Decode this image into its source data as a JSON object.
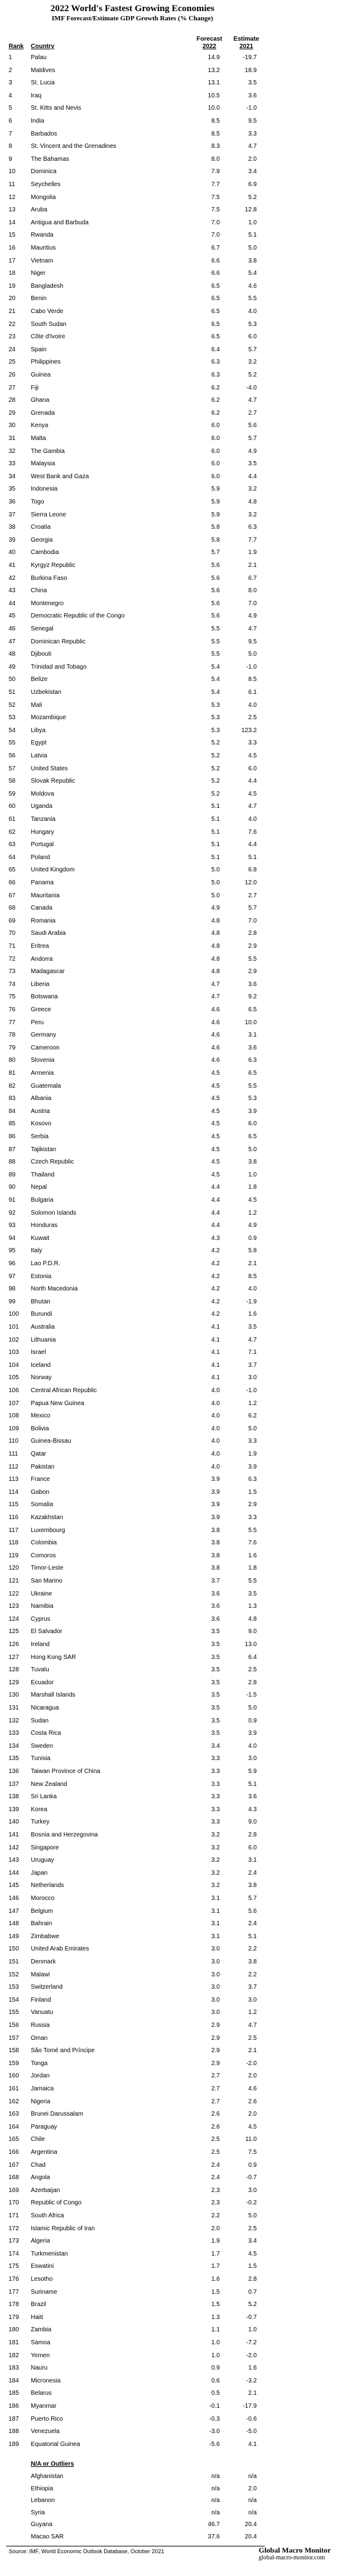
{
  "header": {
    "title": "2022 World's Fastest Growing Economies",
    "subtitle": "IMF Forecast/Estimate GDP Growth Rates (% Change)"
  },
  "table": {
    "columns": [
      "Rank",
      "Country",
      "Forecast",
      "Estimate"
    ],
    "years": [
      "2022",
      "2021"
    ],
    "rows": [
      [
        "1",
        "Palau",
        "14.9",
        "-19.7"
      ],
      [
        "2",
        "Maldives",
        "13.2",
        "18.9"
      ],
      [
        "3",
        "St. Lucia",
        "13.1",
        "3.5"
      ],
      [
        "4",
        "Iraq",
        "10.5",
        "3.6"
      ],
      [
        "5",
        "St. Kitts and Nevis",
        "10.0",
        "-1.0"
      ],
      [
        "6",
        "India",
        "8.5",
        "9.5"
      ],
      [
        "7",
        "Barbados",
        "8.5",
        "3.3"
      ],
      [
        "8",
        "St. Vincent and the Grenadines",
        "8.3",
        "4.7"
      ],
      [
        "9",
        "The Bahamas",
        "8.0",
        "2.0"
      ],
      [
        "10",
        "Dominica",
        "7.9",
        "3.4"
      ],
      [
        "11",
        "Seychelles",
        "7.7",
        "6.9"
      ],
      [
        "12",
        "Mongolia",
        "7.5",
        "5.2"
      ],
      [
        "13",
        "Aruba",
        "7.5",
        "12.8"
      ],
      [
        "14",
        "Antigua and Barbuda",
        "7.0",
        "1.0"
      ],
      [
        "15",
        "Rwanda",
        "7.0",
        "5.1"
      ],
      [
        "16",
        "Mauritius",
        "6.7",
        "5.0"
      ],
      [
        "17",
        "Vietnam",
        "6.6",
        "3.8"
      ],
      [
        "18",
        "Niger",
        "6.6",
        "5.4"
      ],
      [
        "19",
        "Bangladesh",
        "6.5",
        "4.6"
      ],
      [
        "20",
        "Benin",
        "6.5",
        "5.5"
      ],
      [
        "21",
        "Cabo Verde",
        "6.5",
        "4.0"
      ],
      [
        "22",
        "South Sudan",
        "6.5",
        "5.3"
      ],
      [
        "23",
        "Côte d'Ivoire",
        "6.5",
        "6.0"
      ],
      [
        "24",
        "Spain",
        "6.4",
        "5.7"
      ],
      [
        "25",
        "Philippines",
        "6.3",
        "3.2"
      ],
      [
        "26",
        "Guinea",
        "6.3",
        "5.2"
      ],
      [
        "27",
        "Fiji",
        "6.2",
        "-4.0"
      ],
      [
        "28",
        "Ghana",
        "6.2",
        "4.7"
      ],
      [
        "29",
        "Grenada",
        "6.2",
        "2.7"
      ],
      [
        "30",
        "Kenya",
        "6.0",
        "5.6"
      ],
      [
        "31",
        "Malta",
        "6.0",
        "5.7"
      ],
      [
        "32",
        "The Gambia",
        "6.0",
        "4.9"
      ],
      [
        "33",
        "Malaysia",
        "6.0",
        "3.5"
      ],
      [
        "34",
        "West Bank and Gaza",
        "6.0",
        "4.4"
      ],
      [
        "35",
        "Indonesia",
        "5.9",
        "3.2"
      ],
      [
        "36",
        "Togo",
        "5.9",
        "4.8"
      ],
      [
        "37",
        "Sierra Leone",
        "5.9",
        "3.2"
      ],
      [
        "38",
        "Croatia",
        "5.8",
        "6.3"
      ],
      [
        "39",
        "Georgia",
        "5.8",
        "7.7"
      ],
      [
        "40",
        "Cambodia",
        "5.7",
        "1.9"
      ],
      [
        "41",
        "Kyrgyz Republic",
        "5.6",
        "2.1"
      ],
      [
        "42",
        "Burkina Faso",
        "5.6",
        "6.7"
      ],
      [
        "43",
        "China",
        "5.6",
        "8.0"
      ],
      [
        "44",
        "Montenegro",
        "5.6",
        "7.0"
      ],
      [
        "45",
        "Democratic Republic of the Congo",
        "5.6",
        "4.9"
      ],
      [
        "46",
        "Senegal",
        "5.5",
        "4.7"
      ],
      [
        "47",
        "Dominican Republic",
        "5.5",
        "9.5"
      ],
      [
        "48",
        "Djibouti",
        "5.5",
        "5.0"
      ],
      [
        "49",
        "Trinidad and Tobago",
        "5.4",
        "-1.0"
      ],
      [
        "50",
        "Belize",
        "5.4",
        "8.5"
      ],
      [
        "51",
        "Uzbekistan",
        "5.4",
        "6.1"
      ],
      [
        "52",
        "Mali",
        "5.3",
        "4.0"
      ],
      [
        "53",
        "Mozambique",
        "5.3",
        "2.5"
      ],
      [
        "54",
        "Libya",
        "5.3",
        "123.2"
      ],
      [
        "55",
        "Egypt",
        "5.2",
        "3.3"
      ],
      [
        "56",
        "Latvia",
        "5.2",
        "4.5"
      ],
      [
        "57",
        "United States",
        "5.2",
        "6.0"
      ],
      [
        "58",
        "Slovak Republic",
        "5.2",
        "4.4"
      ],
      [
        "59",
        "Moldova",
        "5.2",
        "4.5"
      ],
      [
        "60",
        "Uganda",
        "5.1",
        "4.7"
      ],
      [
        "61",
        "Tanzania",
        "5.1",
        "4.0"
      ],
      [
        "62",
        "Hungary",
        "5.1",
        "7.6"
      ],
      [
        "63",
        "Portugal",
        "5.1",
        "4.4"
      ],
      [
        "64",
        "Poland",
        "5.1",
        "5.1"
      ],
      [
        "65",
        "United Kingdom",
        "5.0",
        "6.8"
      ],
      [
        "66",
        "Panama",
        "5.0",
        "12.0"
      ],
      [
        "67",
        "Mauritania",
        "5.0",
        "2.7"
      ],
      [
        "68",
        "Canada",
        "4.9",
        "5.7"
      ],
      [
        "69",
        "Romania",
        "4.8",
        "7.0"
      ],
      [
        "70",
        "Saudi Arabia",
        "4.8",
        "2.8"
      ],
      [
        "71",
        "Eritrea",
        "4.8",
        "2.9"
      ],
      [
        "72",
        "Andorra",
        "4.8",
        "5.5"
      ],
      [
        "73",
        "Madagascar",
        "4.8",
        "2.9"
      ],
      [
        "74",
        "Liberia",
        "4.7",
        "3.6"
      ],
      [
        "75",
        "Botswana",
        "4.7",
        "9.2"
      ],
      [
        "76",
        "Greece",
        "4.6",
        "6.5"
      ],
      [
        "77",
        "Peru",
        "4.6",
        "10.0"
      ],
      [
        "78",
        "Germany",
        "4.6",
        "3.1"
      ],
      [
        "79",
        "Cameroon",
        "4.6",
        "3.6"
      ],
      [
        "80",
        "Slovenia",
        "4.6",
        "6.3"
      ],
      [
        "81",
        "Armenia",
        "4.5",
        "6.5"
      ],
      [
        "82",
        "Guatemala",
        "4.5",
        "5.5"
      ],
      [
        "83",
        "Albania",
        "4.5",
        "5.3"
      ],
      [
        "84",
        "Austria",
        "4.5",
        "3.9"
      ],
      [
        "85",
        "Kosovo",
        "4.5",
        "6.0"
      ],
      [
        "86",
        "Serbia",
        "4.5",
        "6.5"
      ],
      [
        "87",
        "Tajikistan",
        "4.5",
        "5.0"
      ],
      [
        "88",
        "Czech Republic",
        "4.5",
        "3.8"
      ],
      [
        "89",
        "Thailand",
        "4.5",
        "1.0"
      ],
      [
        "90",
        "Nepal",
        "4.4",
        "1.8"
      ],
      [
        "91",
        "Bulgaria",
        "4.4",
        "4.5"
      ],
      [
        "92",
        "Solomon Islands",
        "4.4",
        "1.2"
      ],
      [
        "93",
        "Honduras",
        "4.4",
        "4.9"
      ],
      [
        "94",
        "Kuwait",
        "4.3",
        "0.9"
      ],
      [
        "95",
        "Italy",
        "4.2",
        "5.8"
      ],
      [
        "96",
        "Lao P.D.R.",
        "4.2",
        "2.1"
      ],
      [
        "97",
        "Estonia",
        "4.2",
        "8.5"
      ],
      [
        "98",
        "North Macedonia",
        "4.2",
        "4.0"
      ],
      [
        "99",
        "Bhutan",
        "4.2",
        "-1.9"
      ],
      [
        "100",
        "Burundi",
        "4.2",
        "1.6"
      ],
      [
        "101",
        "Australia",
        "4.1",
        "3.5"
      ],
      [
        "102",
        "Lithuania",
        "4.1",
        "4.7"
      ],
      [
        "103",
        "Israel",
        "4.1",
        "7.1"
      ],
      [
        "104",
        "Iceland",
        "4.1",
        "3.7"
      ],
      [
        "105",
        "Norway",
        "4.1",
        "3.0"
      ],
      [
        "106",
        "Central African Republic",
        "4.0",
        "-1.0"
      ],
      [
        "107",
        "Papua New Guinea",
        "4.0",
        "1.2"
      ],
      [
        "108",
        "Mexico",
        "4.0",
        "6.2"
      ],
      [
        "109",
        "Bolivia",
        "4.0",
        "5.0"
      ],
      [
        "110",
        "Guinea-Bissau",
        "4.0",
        "3.3"
      ],
      [
        "111",
        "Qatar",
        "4.0",
        "1.9"
      ],
      [
        "112",
        "Pakistan",
        "4.0",
        "3.9"
      ],
      [
        "113",
        "France",
        "3.9",
        "6.3"
      ],
      [
        "114",
        "Gabon",
        "3.9",
        "1.5"
      ],
      [
        "115",
        "Somalia",
        "3.9",
        "2.9"
      ],
      [
        "116",
        "Kazakhstan",
        "3.9",
        "3.3"
      ],
      [
        "117",
        "Luxembourg",
        "3.8",
        "5.5"
      ],
      [
        "118",
        "Colombia",
        "3.8",
        "7.6"
      ],
      [
        "119",
        "Comoros",
        "3.8",
        "1.6"
      ],
      [
        "120",
        "Timor-Leste",
        "3.8",
        "1.8"
      ],
      [
        "121",
        "San Marino",
        "3.7",
        "5.5"
      ],
      [
        "122",
        "Ukraine",
        "3.6",
        "3.5"
      ],
      [
        "123",
        "Namibia",
        "3.6",
        "1.3"
      ],
      [
        "124",
        "Cyprus",
        "3.6",
        "4.8"
      ],
      [
        "125",
        "El Salvador",
        "3.5",
        "9.0"
      ],
      [
        "126",
        "Ireland",
        "3.5",
        "13.0"
      ],
      [
        "127",
        "Hong Kong SAR",
        "3.5",
        "6.4"
      ],
      [
        "128",
        "Tuvalu",
        "3.5",
        "2.5"
      ],
      [
        "129",
        "Ecuador",
        "3.5",
        "2.8"
      ],
      [
        "130",
        "Marshall Islands",
        "3.5",
        "-1.5"
      ],
      [
        "131",
        "Nicaragua",
        "3.5",
        "5.0"
      ],
      [
        "132",
        "Sudan",
        "3.5",
        "0.9"
      ],
      [
        "133",
        "Costa Rica",
        "3.5",
        "3.9"
      ],
      [
        "134",
        "Sweden",
        "3.4",
        "4.0"
      ],
      [
        "135",
        "Tunisia",
        "3.3",
        "3.0"
      ],
      [
        "136",
        "Taiwan Province of China",
        "3.3",
        "5.9"
      ],
      [
        "137",
        "New Zealand",
        "3.3",
        "5.1"
      ],
      [
        "138",
        "Sri Lanka",
        "3.3",
        "3.6"
      ],
      [
        "139",
        "Korea",
        "3.3",
        "4.3"
      ],
      [
        "140",
        "Turkey",
        "3.3",
        "9.0"
      ],
      [
        "141",
        "Bosnia and Herzegovina",
        "3.2",
        "2.8"
      ],
      [
        "142",
        "Singapore",
        "3.2",
        "6.0"
      ],
      [
        "143",
        "Uruguay",
        "3.2",
        "3.1"
      ],
      [
        "144",
        "Japan",
        "3.2",
        "2.4"
      ],
      [
        "145",
        "Netherlands",
        "3.2",
        "3.8"
      ],
      [
        "146",
        "Morocco",
        "3.1",
        "5.7"
      ],
      [
        "147",
        "Belgium",
        "3.1",
        "5.6"
      ],
      [
        "148",
        "Bahrain",
        "3.1",
        "2.4"
      ],
      [
        "149",
        "Zimbabwe",
        "3.1",
        "5.1"
      ],
      [
        "150",
        "United Arab Emirates",
        "3.0",
        "2.2"
      ],
      [
        "151",
        "Denmark",
        "3.0",
        "3.8"
      ],
      [
        "152",
        "Malawi",
        "3.0",
        "2.2"
      ],
      [
        "153",
        "Switzerland",
        "3.0",
        "3.7"
      ],
      [
        "154",
        "Finland",
        "3.0",
        "3.0"
      ],
      [
        "155",
        "Vanuatu",
        "3.0",
        "1.2"
      ],
      [
        "156",
        "Russia",
        "2.9",
        "4.7"
      ],
      [
        "157",
        "Oman",
        "2.9",
        "2.5"
      ],
      [
        "158",
        "São Tomé and Príncipe",
        "2.9",
        "2.1"
      ],
      [
        "159",
        "Tonga",
        "2.9",
        "-2.0"
      ],
      [
        "160",
        "Jordan",
        "2.7",
        "2.0"
      ],
      [
        "161",
        "Jamaica",
        "2.7",
        "4.6"
      ],
      [
        "162",
        "Nigeria",
        "2.7",
        "2.6"
      ],
      [
        "163",
        "Brunei Darussalam",
        "2.6",
        "2.0"
      ],
      [
        "164",
        "Paraguay",
        "2.6",
        "4.5"
      ],
      [
        "165",
        "Chile",
        "2.5",
        "11.0"
      ],
      [
        "166",
        "Argentina",
        "2.5",
        "7.5"
      ],
      [
        "167",
        "Chad",
        "2.4",
        "0.9"
      ],
      [
        "168",
        "Angola",
        "2.4",
        "-0.7"
      ],
      [
        "169",
        "Azerbaijan",
        "2.3",
        "3.0"
      ],
      [
        "170",
        "Republic of Congo",
        "2.3",
        "-0.2"
      ],
      [
        "171",
        "South Africa",
        "2.2",
        "5.0"
      ],
      [
        "172",
        "Islamic Republic of Iran",
        "2.0",
        "2.5"
      ],
      [
        "173",
        "Algeria",
        "1.9",
        "3.4"
      ],
      [
        "174",
        "Turkmenistan",
        "1.7",
        "4.5"
      ],
      [
        "175",
        "Eswatini",
        "1.7",
        "1.5"
      ],
      [
        "176",
        "Lesotho",
        "1.6",
        "2.8"
      ],
      [
        "177",
        "Suriname",
        "1.5",
        "0.7"
      ],
      [
        "178",
        "Brazil",
        "1.5",
        "5.2"
      ],
      [
        "179",
        "Haiti",
        "1.3",
        "-0.7"
      ],
      [
        "180",
        "Zambia",
        "1.1",
        "1.0"
      ],
      [
        "181",
        "Samoa",
        "1.0",
        "-7.2"
      ],
      [
        "182",
        "Yemen",
        "1.0",
        "-2.0"
      ],
      [
        "183",
        "Nauru",
        "0.9",
        "1.6"
      ],
      [
        "184",
        "Micronesia",
        "0.6",
        "-3.2"
      ],
      [
        "185",
        "Belarus",
        "0.5",
        "2.1"
      ],
      [
        "186",
        "Myanmar",
        "-0.1",
        "-17.9"
      ],
      [
        "187",
        "Puerto Rico",
        "-0.3",
        "-0.6"
      ],
      [
        "188",
        "Venezuela",
        "-3.0",
        "-5.0"
      ],
      [
        "189",
        "Equatorial Guinea",
        "-5.6",
        "4.1"
      ]
    ]
  },
  "outliers": {
    "title": "N/A or Outliers",
    "rows": [
      [
        "Afghanistan",
        "n/a",
        "n/a"
      ],
      [
        "Ethiopia",
        "n/a",
        "2.0"
      ],
      [
        "Lebanon",
        "n/a",
        "n/a"
      ],
      [
        "Syria",
        "n/a",
        "n/a"
      ],
      [
        "Guyana",
        "46.7",
        "20.4"
      ],
      [
        "Macao SAR",
        "37.6",
        "20.4"
      ]
    ]
  },
  "footer": {
    "source": "Source: IMF, World Economic Outlook Database,  October 2021",
    "brand": "Global Macro Monitor",
    "url": "global-macro-monitor.com"
  }
}
